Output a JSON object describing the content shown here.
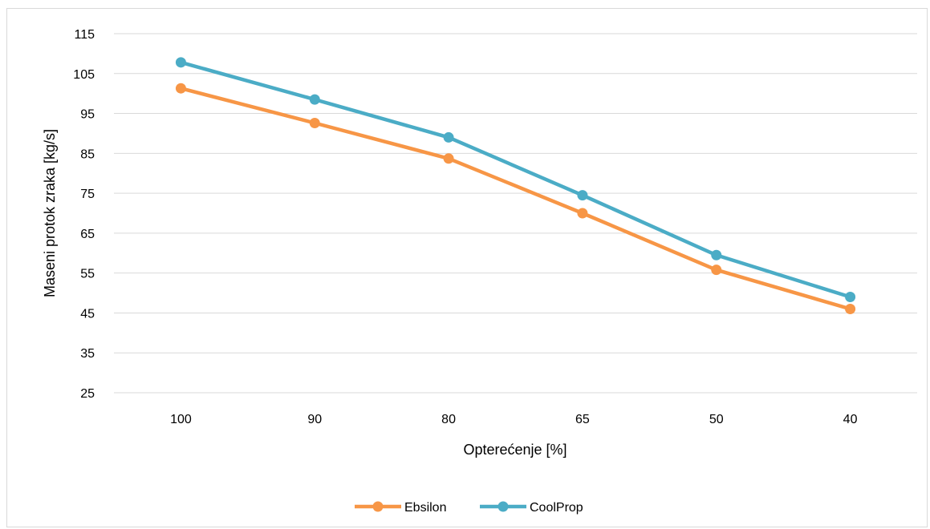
{
  "chart_data": {
    "type": "line",
    "title": "",
    "xlabel": "Opterećenje [%]",
    "ylabel": "Maseni protok zraka [kg/s]",
    "categories": [
      "100",
      "90",
      "80",
      "65",
      "50",
      "40"
    ],
    "ylim": [
      25,
      115
    ],
    "yticks": [
      "25",
      "35",
      "45",
      "55",
      "65",
      "75",
      "85",
      "95",
      "105",
      "115"
    ],
    "grid": true,
    "legend_position": "bottom",
    "series": [
      {
        "name": "Ebsilon",
        "color": "#f79646",
        "values": [
          101.3,
          92.6,
          83.7,
          70.0,
          55.8,
          46.0
        ]
      },
      {
        "name": "CoolProp",
        "color": "#4bacc6",
        "values": [
          107.8,
          98.5,
          89.0,
          74.5,
          59.5,
          49.0
        ]
      }
    ]
  }
}
